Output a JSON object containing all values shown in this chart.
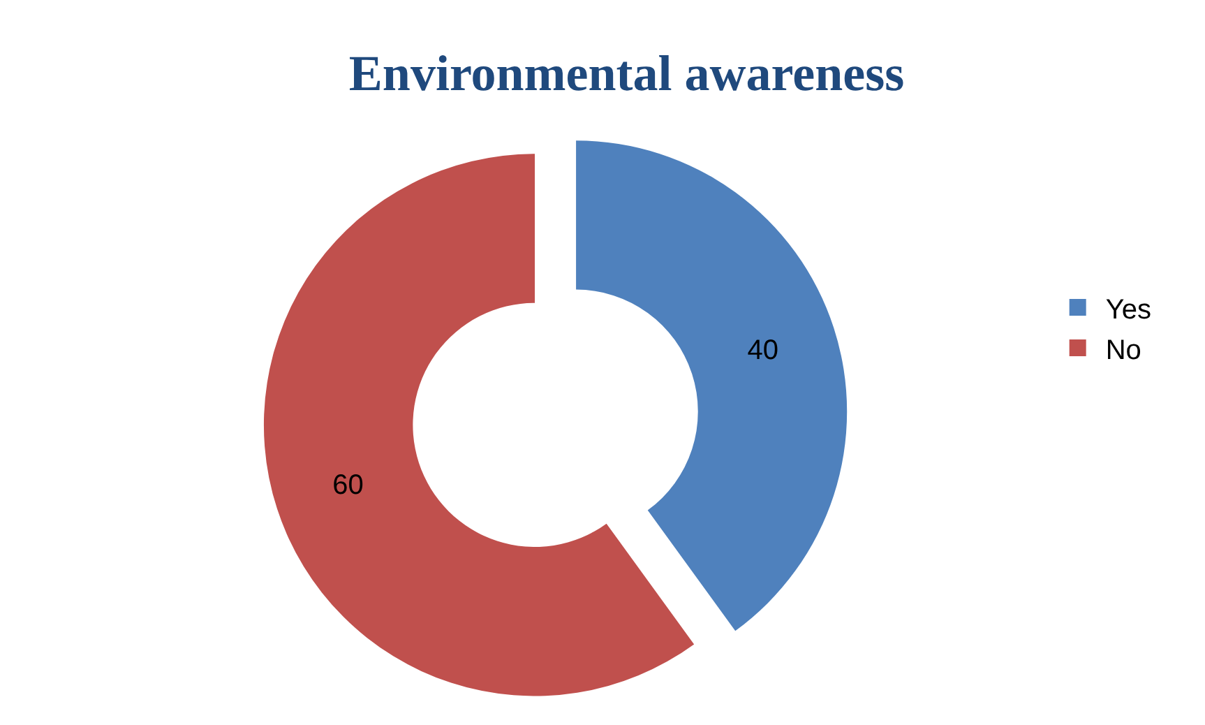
{
  "chart_data": {
    "type": "donut",
    "title": "Environmental awareness",
    "categories": [
      "Yes",
      "No"
    ],
    "values": [
      40,
      60
    ],
    "colors": [
      "#4f81bd",
      "#c0504d"
    ],
    "data_labels": true,
    "legend": "right"
  }
}
